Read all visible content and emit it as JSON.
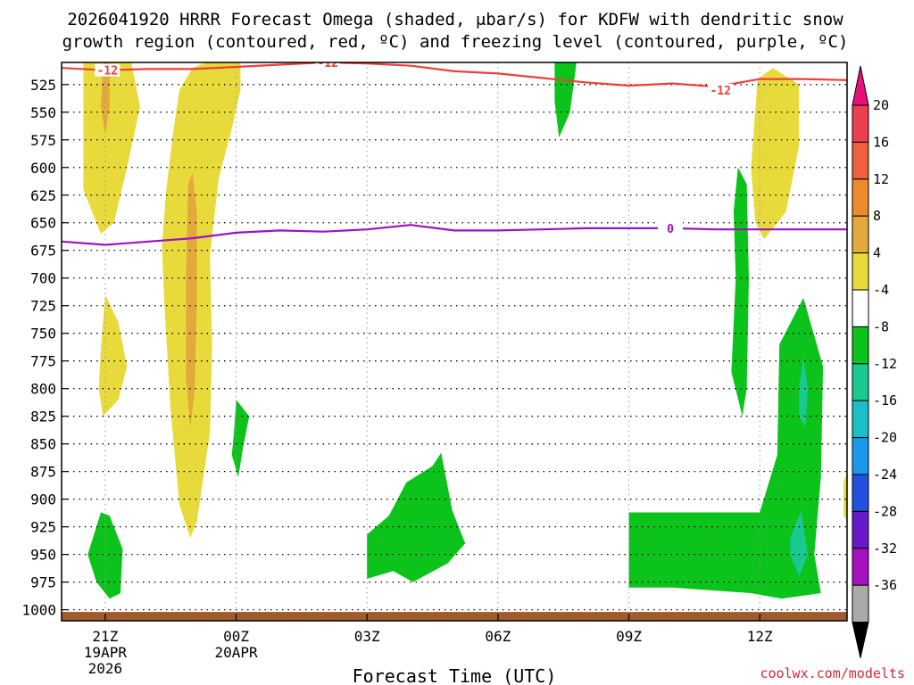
{
  "chart_data": {
    "type": "heatmap",
    "title_line1": "2026041920 HRRR Forecast Omega (shaded, μbar/s) for KDFW with dendritic snow",
    "title_line2": "growth region (contoured, red, ºC) and freezing level (contoured, purple, ºC)",
    "xlabel": "Forecast Time (UTC)",
    "x_ticks": [
      {
        "hour": 1,
        "label": "21Z",
        "sub1": "19APR",
        "sub2": "2026"
      },
      {
        "hour": 4,
        "label": "00Z",
        "sub1": "20APR",
        "sub2": ""
      },
      {
        "hour": 7,
        "label": "03Z",
        "sub1": "",
        "sub2": ""
      },
      {
        "hour": 10,
        "label": "06Z",
        "sub1": "",
        "sub2": ""
      },
      {
        "hour": 13,
        "label": "09Z",
        "sub1": "",
        "sub2": ""
      },
      {
        "hour": 16,
        "label": "12Z",
        "sub1": "",
        "sub2": ""
      }
    ],
    "xlim": [
      0,
      18
    ],
    "y_ticks": [
      525,
      550,
      575,
      600,
      625,
      650,
      675,
      700,
      725,
      750,
      775,
      800,
      825,
      850,
      875,
      900,
      925,
      950,
      975,
      1000
    ],
    "ylim": [
      1010,
      505
    ],
    "colorbar": {
      "ticks": [
        20,
        16,
        12,
        8,
        4,
        -4,
        -8,
        -12,
        -16,
        -20,
        -24,
        -28,
        -32,
        -36
      ],
      "colors": [
        "#ee3e52",
        "#f25f3e",
        "#ed8a2c",
        "#e3a93a",
        "#e9da3b",
        "#ffffff",
        "#0bc31a",
        "#1ac892",
        "#1bbfc8",
        "#1a97ee",
        "#2250e0",
        "#6a18cc",
        "#a513c0",
        "#aaaaaa"
      ],
      "over_color": "#e8117a",
      "under_color": "#000000"
    },
    "omega_regions": [
      {
        "color": "#e9da3b",
        "points": [
          [
            0.5,
            505
          ],
          [
            1.6,
            505
          ],
          [
            1.8,
            545
          ],
          [
            1.5,
            600
          ],
          [
            1.2,
            650
          ],
          [
            0.9,
            660
          ],
          [
            0.5,
            620
          ]
        ]
      },
      {
        "color": "#e3a93a",
        "points": [
          [
            0.95,
            505
          ],
          [
            1.1,
            505
          ],
          [
            1.1,
            545
          ],
          [
            1.0,
            570
          ],
          [
            0.9,
            545
          ]
        ]
      },
      {
        "color": "#e9da3b",
        "points": [
          [
            2.55,
            570
          ],
          [
            2.7,
            530
          ],
          [
            3.0,
            510
          ],
          [
            3.3,
            505
          ],
          [
            4.1,
            505
          ],
          [
            4.1,
            530
          ],
          [
            3.9,
            565
          ],
          [
            3.6,
            610
          ],
          [
            3.4,
            680
          ],
          [
            3.45,
            760
          ],
          [
            3.4,
            840
          ],
          [
            3.1,
            920
          ],
          [
            2.95,
            935
          ],
          [
            2.7,
            905
          ],
          [
            2.5,
            820
          ],
          [
            2.35,
            720
          ],
          [
            2.3,
            670
          ],
          [
            2.4,
            620
          ]
        ]
      },
      {
        "color": "#e3a93a",
        "points": [
          [
            2.9,
            615
          ],
          [
            3.0,
            605
          ],
          [
            3.1,
            640
          ],
          [
            3.1,
            720
          ],
          [
            3.05,
            800
          ],
          [
            2.95,
            835
          ],
          [
            2.85,
            790
          ],
          [
            2.85,
            700
          ]
        ]
      },
      {
        "color": "#e9da3b",
        "points": [
          [
            0.9,
            765
          ],
          [
            1.0,
            715
          ],
          [
            1.3,
            740
          ],
          [
            1.5,
            780
          ],
          [
            1.3,
            810
          ],
          [
            0.95,
            825
          ],
          [
            0.85,
            800
          ]
        ]
      },
      {
        "color": "#0bc31a",
        "points": [
          [
            3.95,
            840
          ],
          [
            4.0,
            810
          ],
          [
            4.3,
            825
          ],
          [
            4.15,
            855
          ],
          [
            4.05,
            880
          ],
          [
            3.9,
            860
          ]
        ]
      },
      {
        "color": "#0bc31a",
        "points": [
          [
            11.3,
            505
          ],
          [
            11.8,
            505
          ],
          [
            11.65,
            550
          ],
          [
            11.4,
            573
          ],
          [
            11.3,
            540
          ]
        ]
      },
      {
        "color": "#0bc31a",
        "points": [
          [
            15.4,
            640
          ],
          [
            15.5,
            600
          ],
          [
            15.7,
            615
          ],
          [
            15.75,
            700
          ],
          [
            15.7,
            800
          ],
          [
            15.6,
            825
          ],
          [
            15.35,
            785
          ],
          [
            15.45,
            700
          ]
        ]
      },
      {
        "color": "#e9da3b",
        "points": [
          [
            15.8,
            600
          ],
          [
            15.95,
            520
          ],
          [
            16.3,
            510
          ],
          [
            16.9,
            525
          ],
          [
            16.9,
            580
          ],
          [
            16.6,
            640
          ],
          [
            16.1,
            665
          ],
          [
            15.9,
            650
          ]
        ]
      },
      {
        "color": "#0bc31a",
        "points": [
          [
            0.6,
            950
          ],
          [
            0.9,
            912
          ],
          [
            1.1,
            915
          ],
          [
            1.4,
            945
          ],
          [
            1.35,
            985
          ],
          [
            1.1,
            990
          ],
          [
            0.8,
            975
          ]
        ]
      },
      {
        "color": "#0bc31a",
        "points": [
          [
            7.0,
            932
          ],
          [
            7.5,
            915
          ],
          [
            7.9,
            885
          ],
          [
            8.5,
            870
          ],
          [
            8.7,
            858
          ],
          [
            8.95,
            910
          ],
          [
            9.25,
            940
          ],
          [
            8.85,
            958
          ],
          [
            8.05,
            975
          ],
          [
            7.6,
            965
          ],
          [
            7.0,
            972
          ]
        ]
      },
      {
        "color": "#0bc31a",
        "points": [
          [
            13.0,
            912
          ],
          [
            16.0,
            912
          ],
          [
            16.4,
            860
          ],
          [
            16.45,
            760
          ],
          [
            17.0,
            718
          ],
          [
            17.45,
            780
          ],
          [
            17.4,
            880
          ],
          [
            17.25,
            950
          ],
          [
            17.4,
            985
          ],
          [
            16.5,
            990
          ],
          [
            15.8,
            985
          ],
          [
            14.0,
            980
          ],
          [
            13.0,
            980
          ]
        ]
      },
      {
        "color": "#1ac892",
        "points": [
          [
            16.9,
            800
          ],
          [
            17.0,
            770
          ],
          [
            17.1,
            800
          ],
          [
            17.05,
            835
          ],
          [
            16.9,
            825
          ]
        ]
      },
      {
        "color": "#1ac892",
        "points": [
          [
            16.7,
            935
          ],
          [
            16.95,
            910
          ],
          [
            17.1,
            950
          ],
          [
            16.9,
            970
          ],
          [
            16.7,
            950
          ]
        ]
      },
      {
        "color": "#e9da3b",
        "points": [
          [
            17.92,
            885
          ],
          [
            18.0,
            875
          ],
          [
            18.0,
            920
          ],
          [
            17.92,
            915
          ]
        ]
      }
    ],
    "ground": {
      "pressure_top": 1002,
      "color": "#a25a2d"
    },
    "series": [
      {
        "color": "#ef3e3a",
        "label": "-12",
        "label_positions": [
          [
            1.05,
            512
          ],
          [
            6.1,
            505
          ],
          [
            15.1,
            530
          ]
        ],
        "points": [
          [
            0,
            510
          ],
          [
            1,
            512
          ],
          [
            2,
            511
          ],
          [
            3,
            511
          ],
          [
            4,
            509
          ],
          [
            5,
            507
          ],
          [
            6,
            505
          ],
          [
            7,
            506
          ],
          [
            8,
            508
          ],
          [
            9,
            513
          ],
          [
            10,
            515
          ],
          [
            11,
            519
          ],
          [
            12,
            523
          ],
          [
            13,
            526
          ],
          [
            14,
            524
          ],
          [
            15,
            527
          ],
          [
            16,
            520
          ],
          [
            17,
            520
          ],
          [
            18,
            521
          ]
        ]
      },
      {
        "color": "#9b12c6",
        "label": "0",
        "label_positions": [
          [
            13.95,
            655
          ]
        ],
        "points": [
          [
            0,
            667
          ],
          [
            1,
            670
          ],
          [
            2,
            667
          ],
          [
            3,
            664
          ],
          [
            4,
            659
          ],
          [
            5,
            657
          ],
          [
            6,
            658
          ],
          [
            7,
            656
          ],
          [
            8,
            652
          ],
          [
            9,
            657
          ],
          [
            10,
            657
          ],
          [
            11,
            656
          ],
          [
            12,
            655
          ],
          [
            13,
            655
          ],
          [
            14,
            655
          ],
          [
            15,
            656
          ],
          [
            16,
            656
          ],
          [
            17,
            656
          ],
          [
            18,
            656
          ]
        ]
      }
    ]
  },
  "credit": "coolwx.com/modelts"
}
